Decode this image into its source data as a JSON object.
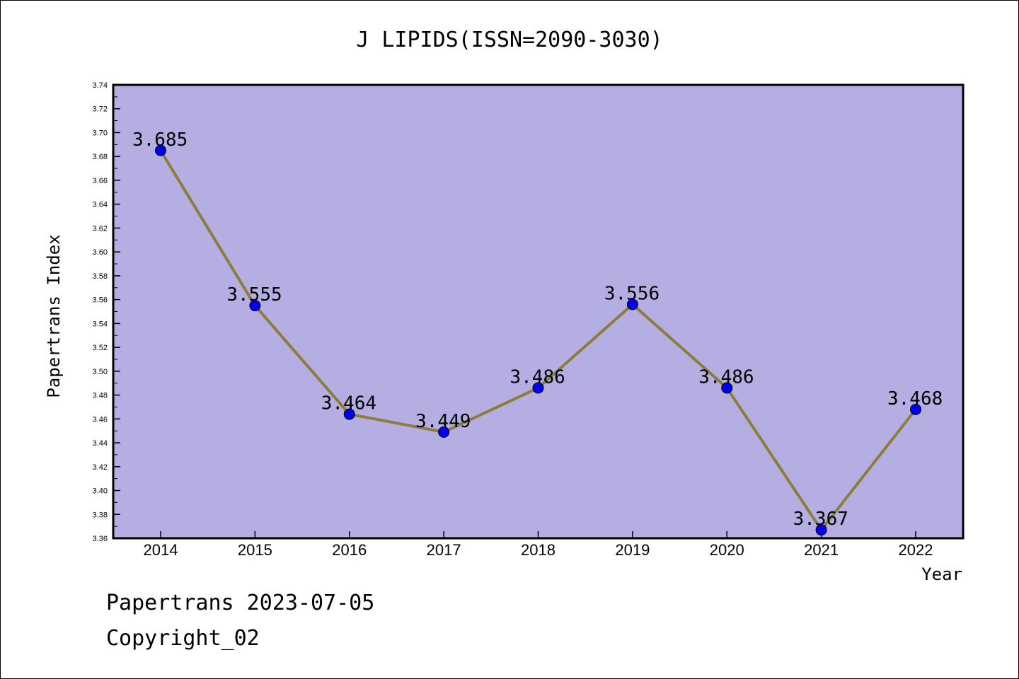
{
  "chart_data": {
    "type": "line",
    "title": "J LIPIDS(ISSN=2090-3030)",
    "xlabel": "Year",
    "ylabel": "Papertrans Index",
    "categories": [
      "2014",
      "2015",
      "2016",
      "2017",
      "2018",
      "2019",
      "2020",
      "2021",
      "2022"
    ],
    "series": [
      {
        "values": [
          3.685,
          3.555,
          3.464,
          3.449,
          3.486,
          3.556,
          3.486,
          3.367,
          3.468
        ],
        "labels": [
          "3.685",
          "3.555",
          "3.464",
          "3.449",
          "3.486",
          "3.556",
          "3.486",
          "3.367",
          "3.468"
        ],
        "line_color": "#8b7d3a",
        "marker_color": "#0000ee"
      }
    ],
    "ylim": [
      3.36,
      3.74
    ],
    "yticks": [
      "3.36",
      "3.38",
      "3.40",
      "3.42",
      "3.44",
      "3.46",
      "3.48",
      "3.50",
      "3.52",
      "3.54",
      "3.56",
      "3.58",
      "3.60",
      "3.62",
      "3.64",
      "3.66",
      "3.68",
      "3.70",
      "3.72",
      "3.74"
    ],
    "plot_background": "#b4aee2",
    "grid": false,
    "legend": "none"
  },
  "footer": {
    "line1": "Papertrans 2023-07-05",
    "line2": "Copyright_02"
  }
}
